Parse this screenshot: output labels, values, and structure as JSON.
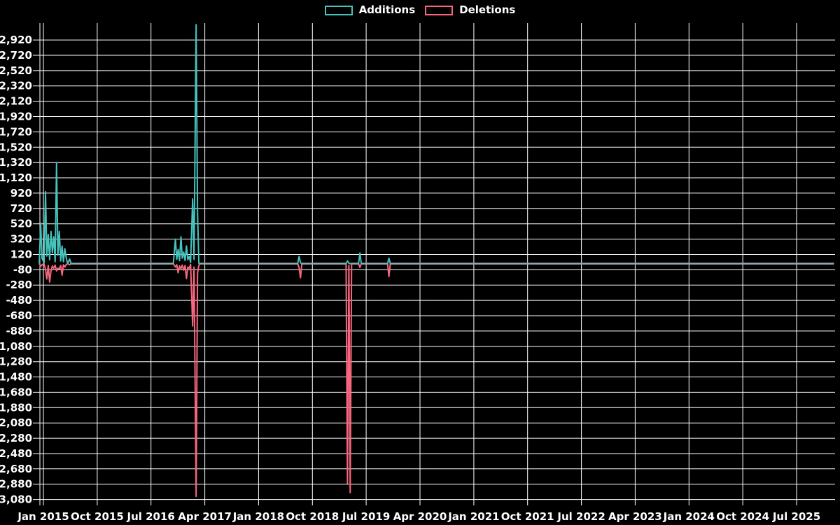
{
  "legend": {
    "items": [
      {
        "label": "Additions",
        "color": "#46c3bd"
      },
      {
        "label": "Deletions",
        "color": "#f9677f"
      }
    ]
  },
  "chart_data": {
    "type": "line",
    "title": "",
    "xlabel": "",
    "ylabel": "",
    "background": "#000000",
    "grid_color": "#ffffff",
    "baseline_color": "#93a9b1",
    "legend_position": "top-center",
    "x_tick_labels": [
      "Jan 2015",
      "Oct 2015",
      "Jul 2016",
      "Apr 2017",
      "Jan 2018",
      "Oct 2018",
      "Jul 2019",
      "Apr 2020",
      "Jan 2021",
      "Oct 2021",
      "Jul 2022",
      "Apr 2023",
      "Jan 2024",
      "Oct 2024",
      "Jul 2025"
    ],
    "y_axis": {
      "max": 2920,
      "min": -3080,
      "step": 200
    },
    "series": [
      {
        "name": "Additions",
        "color": "#46c3bd"
      },
      {
        "name": "Deletions",
        "color": "#f9677f"
      }
    ],
    "points_note": "week 0 = Jan 2015; additions positive, deletions negative; all unlisted weeks are 0/0",
    "points": [
      {
        "week": -3,
        "additions": 0,
        "deletions": 0
      },
      {
        "week": -2,
        "additions": 530,
        "deletions": -35
      },
      {
        "week": -1,
        "additions": 70,
        "deletions": -15
      },
      {
        "week": 0.5,
        "additions": 10,
        "deletions": -5
      },
      {
        "week": 1.5,
        "additions": 940,
        "deletions": -75
      },
      {
        "week": 2.5,
        "additions": 100,
        "deletions": -200
      },
      {
        "week": 3.5,
        "additions": 380,
        "deletions": -25
      },
      {
        "week": 4.5,
        "additions": 50,
        "deletions": -240
      },
      {
        "week": 5.5,
        "additions": 420,
        "deletions": -90
      },
      {
        "week": 6.5,
        "additions": 140,
        "deletions": -30
      },
      {
        "week": 7.5,
        "additions": 350,
        "deletions": -60
      },
      {
        "week": 8.5,
        "additions": 25,
        "deletions": -20
      },
      {
        "week": 9.5,
        "additions": 1320,
        "deletions": -95
      },
      {
        "week": 10.5,
        "additions": 110,
        "deletions": -60
      },
      {
        "week": 11.5,
        "additions": 420,
        "deletions": -70
      },
      {
        "week": 12.5,
        "additions": 35,
        "deletions": -25
      },
      {
        "week": 13.5,
        "additions": 230,
        "deletions": -150
      },
      {
        "week": 14.5,
        "additions": 25,
        "deletions": -15
      },
      {
        "week": 15.5,
        "additions": 195,
        "deletions": -45
      },
      {
        "week": 16.5,
        "additions": 75,
        "deletions": -15
      },
      {
        "week": 17.5,
        "additions": 0,
        "deletions": 0
      },
      {
        "week": 19,
        "additions": 60,
        "deletions": -15
      },
      {
        "week": 20,
        "additions": 0,
        "deletions": 0
      },
      {
        "week": 94,
        "additions": 0,
        "deletions": 0
      },
      {
        "week": 95.5,
        "additions": 320,
        "deletions": -45
      },
      {
        "week": 96.5,
        "additions": 55,
        "deletions": -15
      },
      {
        "week": 97.5,
        "additions": 185,
        "deletions": -120
      },
      {
        "week": 98.5,
        "additions": 40,
        "deletions": -30
      },
      {
        "week": 99.5,
        "additions": 350,
        "deletions": -65
      },
      {
        "week": 100.5,
        "additions": 70,
        "deletions": -20
      },
      {
        "week": 101.5,
        "additions": 150,
        "deletions": -85
      },
      {
        "week": 102.5,
        "additions": 40,
        "deletions": -25
      },
      {
        "week": 103.5,
        "additions": 230,
        "deletions": -195
      },
      {
        "week": 104.5,
        "additions": 50,
        "deletions": -45
      },
      {
        "week": 105.5,
        "additions": 95,
        "deletions": -60
      },
      {
        "week": 106.5,
        "additions": 15,
        "deletions": -10
      },
      {
        "week": 108,
        "additions": 845,
        "deletions": -815
      },
      {
        "week": 109,
        "additions": 55,
        "deletions": -45
      },
      {
        "week": 110.5,
        "additions": 3120,
        "deletions": -3040
      },
      {
        "week": 111.5,
        "additions": 665,
        "deletions": -125
      },
      {
        "week": 112.5,
        "additions": 5,
        "deletions": -20
      },
      {
        "week": 113.5,
        "additions": 0,
        "deletions": 0
      },
      {
        "week": 184,
        "additions": 0,
        "deletions": 0
      },
      {
        "week": 185,
        "additions": 95,
        "deletions": -55
      },
      {
        "week": 186,
        "additions": 10,
        "deletions": -185
      },
      {
        "week": 187,
        "additions": 0,
        "deletions": 0
      },
      {
        "week": 219,
        "additions": 0,
        "deletions": 0
      },
      {
        "week": 220,
        "additions": 35,
        "deletions": -2870
      },
      {
        "week": 221,
        "additions": 5,
        "deletions": -25
      },
      {
        "week": 222,
        "additions": 0,
        "deletions": -2990
      },
      {
        "week": 223,
        "additions": 0,
        "deletions": 0
      },
      {
        "week": 228,
        "additions": 0,
        "deletions": 0
      },
      {
        "week": 229,
        "additions": 140,
        "deletions": -50
      },
      {
        "week": 230,
        "additions": 0,
        "deletions": 0
      },
      {
        "week": 249,
        "additions": 0,
        "deletions": 0
      },
      {
        "week": 250,
        "additions": 70,
        "deletions": -170
      },
      {
        "week": 251,
        "additions": 0,
        "deletions": 0
      },
      {
        "week": 572,
        "additions": 0,
        "deletions": 0
      }
    ]
  }
}
